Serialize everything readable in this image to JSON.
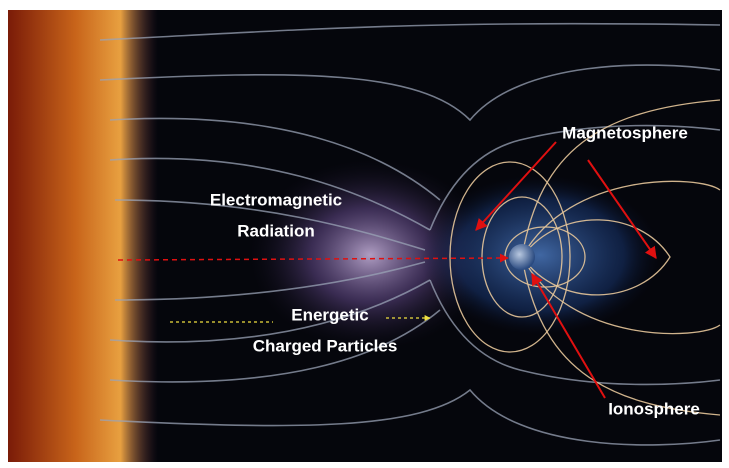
{
  "labels": {
    "radiation": [
      "Electromagnetic",
      "Radiation"
    ],
    "particles": [
      "Energetic",
      "Charged Particles"
    ],
    "magnetosphere": "Magnetosphere",
    "ionosphere": "Ionosphere"
  }
}
